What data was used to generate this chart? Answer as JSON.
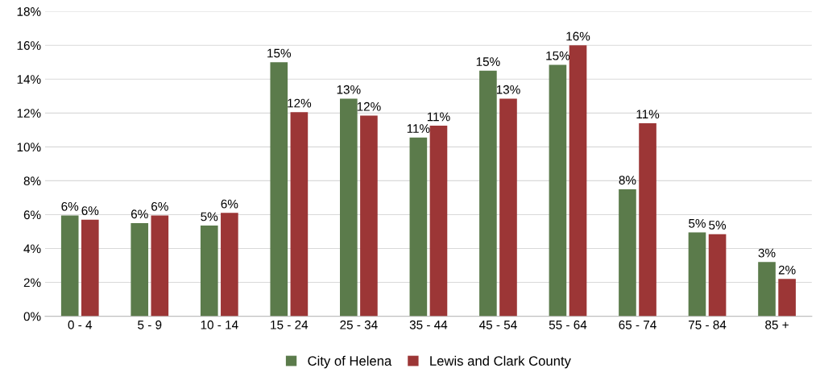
{
  "chart_data": {
    "type": "bar",
    "categories": [
      "0 - 4",
      "5 - 9",
      "10 - 14",
      "15 - 24",
      "25 - 34",
      "35 - 44",
      "45 - 54",
      "55 - 64",
      "65 - 74",
      "75 - 84",
      "85 +"
    ],
    "series": [
      {
        "name": "City of Helena",
        "color": "#5b7b4b",
        "values": [
          5.95,
          5.5,
          5.35,
          15.0,
          12.85,
          10.55,
          14.5,
          14.85,
          7.5,
          4.95,
          3.2
        ],
        "value_labels": [
          "6%",
          "6%",
          "5%",
          "15%",
          "13%",
          "11%",
          "15%",
          "15%",
          "8%",
          "5%",
          "3%"
        ]
      },
      {
        "name": "Lewis and Clark County",
        "color": "#9c3636",
        "values": [
          5.7,
          5.95,
          6.1,
          12.05,
          11.85,
          11.25,
          12.85,
          16.0,
          11.4,
          4.85,
          2.2
        ],
        "value_labels": [
          "6%",
          "6%",
          "6%",
          "12%",
          "12%",
          "11%",
          "13%",
          "16%",
          "11%",
          "5%",
          "2%"
        ]
      }
    ],
    "ylim": [
      0,
      18
    ],
    "yticks": [
      {
        "value": 0,
        "label": "0%"
      },
      {
        "value": 2,
        "label": "2%"
      },
      {
        "value": 4,
        "label": "4%"
      },
      {
        "value": 6,
        "label": "6%"
      },
      {
        "value": 8,
        "label": "8%"
      },
      {
        "value": 10,
        "label": "10%"
      },
      {
        "value": 12,
        "label": "12%"
      },
      {
        "value": 14,
        "label": "14%"
      },
      {
        "value": 16,
        "label": "16%"
      },
      {
        "value": 18,
        "label": "18%"
      }
    ],
    "grid": "y",
    "legend": "bottom"
  }
}
